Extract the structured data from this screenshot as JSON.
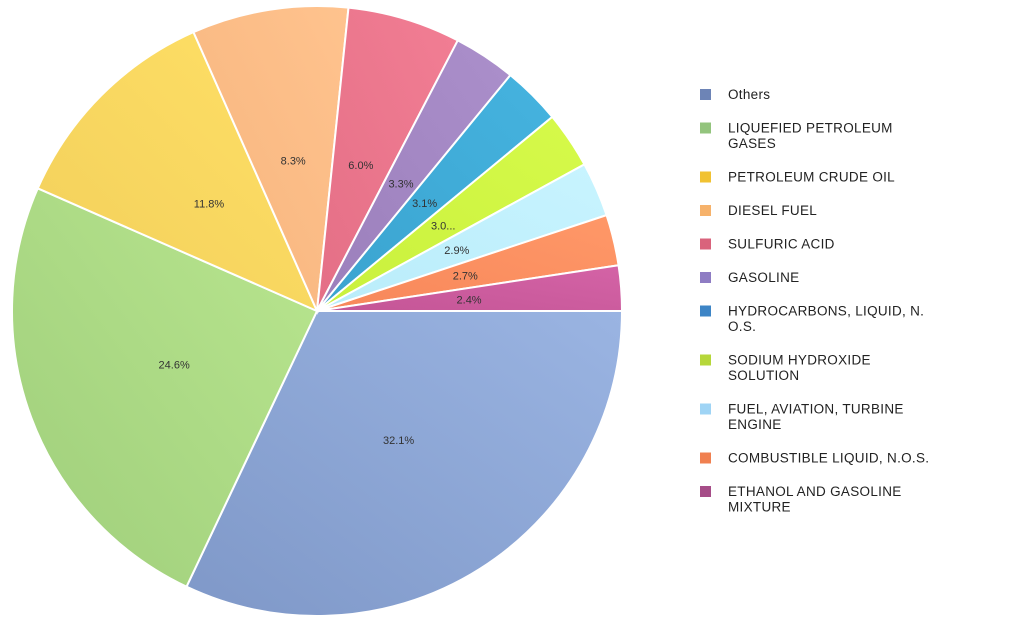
{
  "chart_data": {
    "type": "pie",
    "title": "",
    "legend_position": "right",
    "start_angle_deg": 90,
    "direction": "clockwise",
    "slices": [
      {
        "name": "Others",
        "value": 32.1,
        "label": "32.1%",
        "color": "#7f98c8",
        "highlight": "#9ab4e2",
        "swatch": "#6d84b6"
      },
      {
        "name": "LIQUEFIED PETROLEUM GASES",
        "value": 24.6,
        "label": "24.6%",
        "color": "#9fce7b",
        "highlight": "#b9e68f",
        "swatch": "#93c47d"
      },
      {
        "name": "PETROLEUM CRUDE OIL",
        "value": 11.8,
        "label": "11.8%",
        "color": "#f2cf5b",
        "highlight": "#ffe066",
        "swatch": "#f1c232"
      },
      {
        "name": "DIESEL FUEL",
        "value": 8.3,
        "label": "8.3%",
        "color": "#f6b47d",
        "highlight": "#ffc38e",
        "swatch": "#f6b26b"
      },
      {
        "name": "SULFURIC ACID",
        "value": 6.0,
        "label": "6.0%",
        "color": "#e46f86",
        "highlight": "#f27e94",
        "swatch": "#d9637c"
      },
      {
        "name": "GASOLINE",
        "value": 3.3,
        "label": "3.3%",
        "color": "#9b7fbb",
        "highlight": "#ab8fcb",
        "swatch": "#8e7cc3"
      },
      {
        "name": "HYDROCARBONS, LIQUID, N.O.S.",
        "value": 3.1,
        "label": "3.1%",
        "color": "#3aa3cf",
        "highlight": "#45b3df",
        "swatch": "#3d85c6"
      },
      {
        "name": "SODIUM HYDROXIDE SOLUTION",
        "value": 3.0,
        "label": "3.0...",
        "color": "#c9f03c",
        "highlight": "#d6fa4a",
        "swatch": "#b6d73a"
      },
      {
        "name": "FUEL, AVIATION, TURBINE ENGINE",
        "value": 2.9,
        "label": "2.9%",
        "color": "#b9ecfa",
        "highlight": "#c8f4ff",
        "swatch": "#9fd4f5"
      },
      {
        "name": "COMBUSTIBLE LIQUID, N.O.S.",
        "value": 2.7,
        "label": "2.7%",
        "color": "#f7875a",
        "highlight": "#ff9868",
        "swatch": "#f08050"
      },
      {
        "name": "ETHANOL AND GASOLINE MIXTURE",
        "value": 2.4,
        "label": "2.4%",
        "color": "#c45596",
        "highlight": "#d463a6",
        "swatch": "#a64d88"
      }
    ],
    "legend": {
      "entries": [
        {
          "lines": [
            "Others"
          ]
        },
        {
          "lines": [
            "LIQUEFIED PETROLEUM",
            "GASES"
          ]
        },
        {
          "lines": [
            "PETROLEUM CRUDE OIL"
          ]
        },
        {
          "lines": [
            "DIESEL FUEL"
          ]
        },
        {
          "lines": [
            "SULFURIC ACID"
          ]
        },
        {
          "lines": [
            "GASOLINE"
          ]
        },
        {
          "lines": [
            "HYDROCARBONS, LIQUID, N.",
            "O.S."
          ]
        },
        {
          "lines": [
            "SODIUM HYDROXIDE",
            "SOLUTION"
          ]
        },
        {
          "lines": [
            "FUEL, AVIATION, TURBINE",
            "ENGINE"
          ]
        },
        {
          "lines": [
            "COMBUSTIBLE LIQUID, N.O.S."
          ]
        },
        {
          "lines": [
            "ETHANOL AND GASOLINE",
            "MIXTURE"
          ]
        }
      ]
    }
  }
}
